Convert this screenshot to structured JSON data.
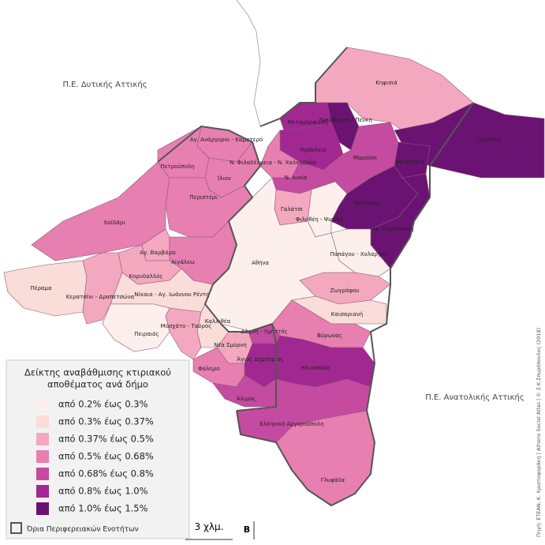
{
  "map_labels": [
    "Π.Ε. Δυτικής Αττικής",
    "Π.Ε. Ανατολικής Αττικής"
  ],
  "municipalities": [
    {
      "name": "Κηφισιά",
      "color": "#f4a8c0"
    },
    {
      "name": "Πεντέλη",
      "color": "#6b1372"
    },
    {
      "name": "Μεταμόρφωση",
      "color": "#a02890"
    },
    {
      "name": "Λυκόβρυση - Πεύκη",
      "color": "#6b1372"
    },
    {
      "name": "Ηράκλειο",
      "color": "#a02890"
    },
    {
      "name": "Μαρούσι",
      "color": "#c44ba0"
    },
    {
      "name": "Βριλήσσια",
      "color": "#6b1372"
    },
    {
      "name": "Χαλάνδρι",
      "color": "#6b1372"
    },
    {
      "name": "Αγ. Παρασκευή",
      "color": "#6b1372"
    },
    {
      "name": "Ν. Φιλαδέλφεια - Ν. Χαλκηδόνα",
      "color": "#e77fb0"
    },
    {
      "name": "Ν. Ιωνία",
      "color": "#c44ba0"
    },
    {
      "name": "Γαλάτσι",
      "color": "#f4a8c0"
    },
    {
      "name": "Φιλοθέη - Ψυχικό",
      "color": "#fdf0ec"
    },
    {
      "name": "Παπάγου - Χολαργού",
      "color": "#fdf0ec"
    },
    {
      "name": "Ζωγράφου",
      "color": "#f4a8c0"
    },
    {
      "name": "Αθήνα",
      "color": "#fdf0ec"
    },
    {
      "name": "Καισαριανή",
      "color": "#fadcd8"
    },
    {
      "name": "Βύρωνας",
      "color": "#e77fb0"
    },
    {
      "name": "Δάφνη - Υμηττός",
      "color": "#c44ba0"
    },
    {
      "name": "Ηλιούπολη",
      "color": "#a02890"
    },
    {
      "name": "Νέα Σμύρνη",
      "color": "#f4a8c0"
    },
    {
      "name": "Άγιος Δημήτριος",
      "color": "#a02890"
    },
    {
      "name": "Φάληρο",
      "color": "#e77fb0"
    },
    {
      "name": "Άλιμος",
      "color": "#c44ba0"
    },
    {
      "name": "Ελληνικό Αργυρούπολη",
      "color": "#c44ba0"
    },
    {
      "name": "Γλυφάδα",
      "color": "#e77fb0"
    },
    {
      "name": "Καλλιθέα",
      "color": "#fadcd8"
    },
    {
      "name": "Μοσχάτο - Ταύρος",
      "color": "#f4a8c0"
    },
    {
      "name": "Αγ. Ανάργυροι - Καματερό",
      "color": "#e77fb0"
    },
    {
      "name": "Πετρούπολη",
      "color": "#e77fb0"
    },
    {
      "name": "Ίλιον",
      "color": "#e77fb0"
    },
    {
      "name": "Χαϊδάρι",
      "color": "#e77fb0"
    },
    {
      "name": "Περιστέρι",
      "color": "#e77fb0"
    },
    {
      "name": "Αγ. Βαρβάρα",
      "color": "#f4a8c0"
    },
    {
      "name": "Αιγάλεω",
      "color": "#e77fb0"
    },
    {
      "name": "Κορυδαλλός",
      "color": "#f4a8c0"
    },
    {
      "name": "Πέραμα",
      "color": "#fadcd8"
    },
    {
      "name": "Κερατσίνι - Δραπετσώνα",
      "color": "#f4a8c0"
    },
    {
      "name": "Νίκαια - Αγ. Ιωάννου Ρέντη",
      "color": "#fadcd8"
    },
    {
      "name": "Πειραιάς",
      "color": "#fdf0ec"
    }
  ],
  "legend": {
    "title_lines": [
      "Δείκτης αναβάθμισης κτιριακού",
      "αποθέματος ανά δήμο"
    ],
    "items": [
      {
        "label": "από  0.2% έως 0.3%",
        "color": "#fdf0ec"
      },
      {
        "label": "από  0.3% έως 0.37%",
        "color": "#fadcd8"
      },
      {
        "label": "από  0.37% έως 0.5%",
        "color": "#f4a8c0"
      },
      {
        "label": "από  0.5% έως 0.68%",
        "color": "#e77fb0"
      },
      {
        "label": "από  0.68% έως 0.8%",
        "color": "#c44ba0"
      },
      {
        "label": "από  0.8% έως 1.0%",
        "color": "#a02890"
      },
      {
        "label": "από  1.0% έως 1.5%",
        "color": "#6b1372"
      }
    ],
    "boundary": "Όρια Περιφερειακών Ενοτήτων"
  },
  "scale": "3 χλμ.",
  "north": "Β",
  "source": "Πηγή: ΕΤΕΑΝ, Κ. Χριστοφοράκη | Athens Social Atlas | © Σ.Κ.Σπυρόπουλος (2018)"
}
